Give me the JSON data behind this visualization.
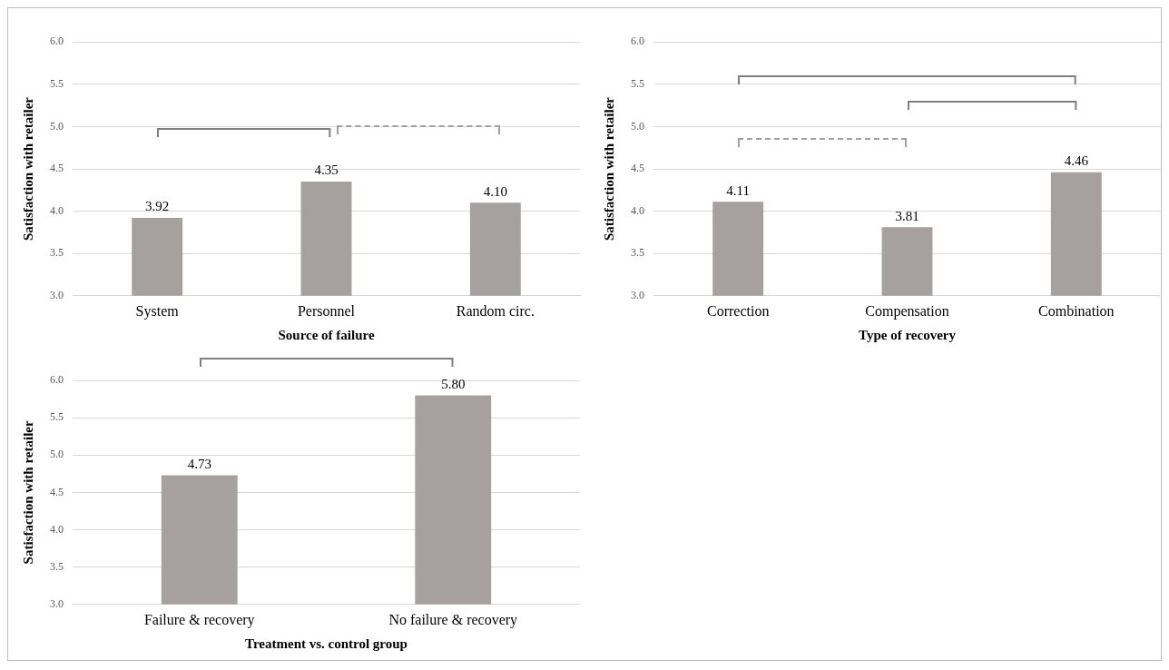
{
  "chart_data": [
    {
      "type": "bar",
      "categories": [
        "System",
        "Personnel",
        "Random circ."
      ],
      "values": [
        3.92,
        4.35,
        4.1
      ],
      "value_labels": [
        "3.92",
        "4.35",
        "4.10"
      ],
      "color": "#a6a19f",
      "xlabel": "Source of failure",
      "ylabel": "Satisfaction with retailer",
      "ylim": [
        3,
        6
      ],
      "yticks": [
        {
          "value": 3,
          "label": "3.0"
        },
        {
          "value": 3.5,
          "label": "3.5"
        },
        {
          "value": 4,
          "label": "4.0"
        },
        {
          "value": 4.5,
          "label": "4.5"
        },
        {
          "value": 5,
          "label": "5.0"
        },
        {
          "value": 5.5,
          "label": "5.5"
        },
        {
          "value": 6,
          "label": "6.0"
        }
      ],
      "grid": "y"
    },
    {
      "type": "bar",
      "categories": [
        "Correction",
        "Compensation",
        "Combination"
      ],
      "values": [
        4.11,
        3.81,
        4.46
      ],
      "value_labels": [
        "4.11",
        "3.81",
        "4.46"
      ],
      "color": "#a6a19f",
      "xlabel": "Type of recovery",
      "ylabel": "Satisfaction with retailer",
      "ylim": [
        3,
        6
      ],
      "yticks": [
        {
          "value": 3,
          "label": "3.0"
        },
        {
          "value": 3.5,
          "label": "3.5"
        },
        {
          "value": 4,
          "label": "4.0"
        },
        {
          "value": 4.5,
          "label": "4.5"
        },
        {
          "value": 5,
          "label": "5.0"
        },
        {
          "value": 5.5,
          "label": "5.5"
        },
        {
          "value": 6,
          "label": "6.0"
        }
      ],
      "grid": "y"
    },
    {
      "type": "bar",
      "categories": [
        "Failure & recovery",
        "No failure & recovery"
      ],
      "values": [
        4.73,
        5.8
      ],
      "value_labels": [
        "4.73",
        "5.80"
      ],
      "color": "#a6a19f",
      "xlabel": "Treatment vs. control group",
      "ylabel": "Satisfaction with retailer",
      "ylim": [
        3,
        6
      ],
      "yticks": [
        {
          "value": 3,
          "label": "3.0"
        },
        {
          "value": 3.5,
          "label": "3.5"
        },
        {
          "value": 4,
          "label": "4.0"
        },
        {
          "value": 4.5,
          "label": "4.5"
        },
        {
          "value": 5,
          "label": "5.0"
        },
        {
          "value": 5.5,
          "label": "5.5"
        },
        {
          "value": 6,
          "label": "6.0"
        }
      ],
      "grid": "y"
    }
  ]
}
